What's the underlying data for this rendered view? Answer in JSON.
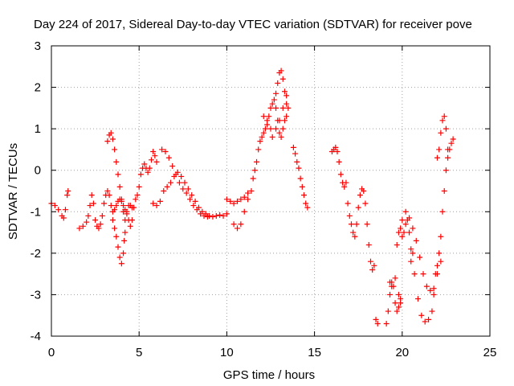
{
  "chart_data": {
    "type": "scatter",
    "title": "Day 224 of 2017, Sidereal Day-to-day VTEC variation (SDTVAR) for receiver pove",
    "xlabel": "GPS time / hours",
    "ylabel": "SDTVAR / TECUs",
    "xlim": [
      0,
      25
    ],
    "ylim": [
      -4,
      3
    ],
    "xticks": [
      0,
      5,
      10,
      15,
      20,
      25
    ],
    "yticks": [
      -4,
      -3,
      -2,
      -1,
      0,
      1,
      2,
      3
    ],
    "grid": true,
    "marker": "+",
    "colors": {
      "series": "#ff0000",
      "axis": "#000000",
      "grid": "#a0a0a0"
    },
    "series": [
      {
        "name": "SDTVAR",
        "points": [
          [
            0.0,
            -0.8
          ],
          [
            0.2,
            -0.85
          ],
          [
            0.4,
            -0.95
          ],
          [
            0.6,
            -1.1
          ],
          [
            0.7,
            -1.15
          ],
          [
            0.8,
            -0.95
          ],
          [
            0.9,
            -0.6
          ],
          [
            0.95,
            -0.5
          ],
          [
            1.6,
            -1.4
          ],
          [
            1.8,
            -1.35
          ],
          [
            2.0,
            -1.25
          ],
          [
            2.1,
            -1.1
          ],
          [
            2.2,
            -0.85
          ],
          [
            2.3,
            -0.6
          ],
          [
            2.4,
            -0.8
          ],
          [
            2.5,
            -1.2
          ],
          [
            2.6,
            -1.35
          ],
          [
            2.7,
            -1.4
          ],
          [
            2.8,
            -1.3
          ],
          [
            2.9,
            -1.1
          ],
          [
            3.0,
            -0.8
          ],
          [
            3.1,
            -0.6
          ],
          [
            3.2,
            -0.5
          ],
          [
            3.3,
            -0.6
          ],
          [
            3.4,
            -0.85
          ],
          [
            3.5,
            -1.0
          ],
          [
            3.6,
            -0.95
          ],
          [
            3.7,
            -0.85
          ],
          [
            3.8,
            -0.75
          ],
          [
            3.9,
            -0.7
          ],
          [
            4.0,
            -0.75
          ],
          [
            4.1,
            -0.85
          ],
          [
            4.2,
            -0.95
          ],
          [
            4.3,
            -1.05
          ],
          [
            4.4,
            -1.2
          ],
          [
            4.5,
            -1.35
          ],
          [
            4.6,
            -1.2
          ],
          [
            4.7,
            -0.9
          ],
          [
            4.8,
            -0.7
          ],
          [
            4.9,
            -0.6
          ],
          [
            5.0,
            -0.4
          ],
          [
            5.1,
            -0.1
          ],
          [
            5.2,
            0.05
          ],
          [
            5.3,
            0.15
          ],
          [
            5.4,
            0.05
          ],
          [
            5.5,
            -0.05
          ],
          [
            5.6,
            0.05
          ],
          [
            5.7,
            0.25
          ],
          [
            5.8,
            0.45
          ],
          [
            5.9,
            0.35
          ],
          [
            6.0,
            0.2
          ],
          [
            3.2,
            0.7
          ],
          [
            3.3,
            0.85
          ],
          [
            3.4,
            0.9
          ],
          [
            3.5,
            0.75
          ],
          [
            3.6,
            0.5
          ],
          [
            3.7,
            0.2
          ],
          [
            3.8,
            -0.1
          ],
          [
            3.9,
            -0.4
          ],
          [
            4.0,
            -0.7
          ],
          [
            4.1,
            -1.0
          ],
          [
            4.2,
            -1.2
          ],
          [
            4.3,
            -1.0
          ],
          [
            4.4,
            -0.85
          ],
          [
            4.5,
            -0.85
          ],
          [
            4.6,
            -0.9
          ],
          [
            3.5,
            -1.2
          ],
          [
            3.6,
            -1.4
          ],
          [
            3.7,
            -1.6
          ],
          [
            3.8,
            -1.85
          ],
          [
            3.9,
            -2.1
          ],
          [
            4.0,
            -2.25
          ],
          [
            4.1,
            -2.0
          ],
          [
            4.15,
            -1.7
          ],
          [
            4.2,
            -1.5
          ],
          [
            5.8,
            -0.8
          ],
          [
            6.0,
            -0.85
          ],
          [
            6.2,
            -0.75
          ],
          [
            6.4,
            -0.5
          ],
          [
            6.6,
            -0.4
          ],
          [
            6.8,
            -0.3
          ],
          [
            7.0,
            -0.15
          ],
          [
            7.2,
            -0.05
          ],
          [
            7.4,
            -0.15
          ],
          [
            7.6,
            -0.3
          ],
          [
            7.8,
            -0.45
          ],
          [
            8.0,
            -0.6
          ],
          [
            8.2,
            -0.75
          ],
          [
            8.4,
            -0.9
          ],
          [
            8.6,
            -1.0
          ],
          [
            8.8,
            -1.05
          ],
          [
            9.0,
            -1.1
          ],
          [
            9.2,
            -1.12
          ],
          [
            9.4,
            -1.1
          ],
          [
            9.6,
            -1.08
          ],
          [
            9.8,
            -1.1
          ],
          [
            10.0,
            -1.05
          ],
          [
            6.3,
            0.5
          ],
          [
            6.5,
            0.45
          ],
          [
            6.7,
            0.3
          ],
          [
            6.9,
            0.1
          ],
          [
            7.1,
            -0.1
          ],
          [
            7.3,
            -0.3
          ],
          [
            7.5,
            -0.45
          ],
          [
            7.7,
            -0.55
          ],
          [
            7.9,
            -0.7
          ],
          [
            8.1,
            -0.85
          ],
          [
            8.3,
            -0.95
          ],
          [
            8.5,
            -1.05
          ],
          [
            8.7,
            -1.1
          ],
          [
            8.9,
            -1.12
          ],
          [
            10.0,
            -0.7
          ],
          [
            10.2,
            -0.75
          ],
          [
            10.4,
            -0.8
          ],
          [
            10.6,
            -0.75
          ],
          [
            10.8,
            -0.7
          ],
          [
            11.0,
            -0.65
          ],
          [
            11.2,
            -0.55
          ],
          [
            10.4,
            -1.3
          ],
          [
            10.6,
            -1.4
          ],
          [
            10.8,
            -1.3
          ],
          [
            11.0,
            -1.0
          ],
          [
            11.2,
            -0.7
          ],
          [
            11.4,
            -0.5
          ],
          [
            11.5,
            -0.2
          ],
          [
            11.6,
            0.0
          ],
          [
            11.7,
            0.2
          ],
          [
            11.8,
            0.5
          ],
          [
            11.9,
            0.7
          ],
          [
            12.0,
            0.8
          ],
          [
            12.1,
            0.9
          ],
          [
            12.2,
            1.0
          ],
          [
            12.3,
            1.1
          ],
          [
            12.4,
            1.3
          ],
          [
            12.5,
            1.5
          ],
          [
            12.6,
            1.6
          ],
          [
            12.7,
            1.7
          ],
          [
            12.8,
            1.85
          ],
          [
            12.9,
            2.1
          ],
          [
            13.0,
            2.35
          ],
          [
            13.1,
            2.4
          ],
          [
            13.2,
            2.2
          ],
          [
            13.3,
            1.9
          ],
          [
            13.4,
            1.6
          ],
          [
            13.5,
            1.5
          ],
          [
            12.1,
            1.3
          ],
          [
            12.3,
            1.2
          ],
          [
            12.5,
            1.0
          ],
          [
            12.6,
            0.8
          ],
          [
            12.8,
            1.0
          ],
          [
            12.9,
            1.2
          ],
          [
            13.0,
            0.9
          ],
          [
            13.1,
            0.8
          ],
          [
            13.2,
            1.0
          ],
          [
            13.3,
            1.2
          ],
          [
            13.4,
            1.3
          ],
          [
            12.8,
            1.5
          ],
          [
            13.0,
            1.2
          ],
          [
            13.2,
            1.5
          ],
          [
            13.4,
            1.8
          ],
          [
            13.8,
            0.55
          ],
          [
            13.9,
            0.4
          ],
          [
            14.0,
            0.2
          ],
          [
            14.1,
            0.05
          ],
          [
            14.2,
            -0.2
          ],
          [
            14.3,
            -0.4
          ],
          [
            14.4,
            -0.6
          ],
          [
            14.5,
            -0.8
          ],
          [
            14.6,
            -0.9
          ],
          [
            16.0,
            0.45
          ],
          [
            16.1,
            0.5
          ],
          [
            16.2,
            0.55
          ],
          [
            16.3,
            0.45
          ],
          [
            16.4,
            0.2
          ],
          [
            16.5,
            -0.1
          ],
          [
            16.6,
            -0.3
          ],
          [
            16.7,
            -0.4
          ],
          [
            16.8,
            -0.3
          ],
          [
            16.9,
            -0.8
          ],
          [
            17.0,
            -1.1
          ],
          [
            17.1,
            -1.3
          ],
          [
            17.2,
            -1.5
          ],
          [
            17.3,
            -1.6
          ],
          [
            17.4,
            -1.3
          ],
          [
            17.5,
            -0.9
          ],
          [
            17.6,
            -0.6
          ],
          [
            17.7,
            -0.45
          ],
          [
            17.8,
            -0.5
          ],
          [
            17.9,
            -0.8
          ],
          [
            18.0,
            -1.3
          ],
          [
            18.1,
            -1.8
          ],
          [
            18.2,
            -2.2
          ],
          [
            18.3,
            -2.4
          ],
          [
            18.4,
            -2.3
          ],
          [
            18.5,
            -3.6
          ],
          [
            18.6,
            -3.7
          ],
          [
            19.1,
            -3.7
          ],
          [
            19.2,
            -3.4
          ],
          [
            19.3,
            -3.0
          ],
          [
            19.4,
            -2.7
          ],
          [
            19.5,
            -2.8
          ],
          [
            19.6,
            -3.2
          ],
          [
            19.7,
            -3.4
          ],
          [
            19.8,
            -3.3
          ],
          [
            19.9,
            -3.1
          ],
          [
            19.3,
            -2.7
          ],
          [
            19.4,
            -2.8
          ],
          [
            19.6,
            -2.6
          ],
          [
            19.8,
            -3.0
          ],
          [
            19.9,
            -3.2
          ],
          [
            19.7,
            -1.8
          ],
          [
            19.8,
            -1.5
          ],
          [
            19.9,
            -1.4
          ],
          [
            20.0,
            -1.6
          ],
          [
            20.1,
            -1.5
          ],
          [
            20.2,
            -1.3
          ],
          [
            20.3,
            -1.2
          ],
          [
            20.4,
            -1.5
          ],
          [
            20.5,
            -1.9
          ],
          [
            20.6,
            -2.0
          ],
          [
            20.0,
            -1.2
          ],
          [
            20.2,
            -1.0
          ],
          [
            20.4,
            -1.15
          ],
          [
            20.6,
            -1.4
          ],
          [
            20.8,
            -1.7
          ],
          [
            21.0,
            -2.1
          ],
          [
            21.2,
            -2.5
          ],
          [
            21.4,
            -2.8
          ],
          [
            21.6,
            -2.9
          ],
          [
            21.8,
            -2.85
          ],
          [
            22.0,
            -2.5
          ],
          [
            22.2,
            -2.2
          ],
          [
            20.5,
            -2.2
          ],
          [
            20.7,
            -2.5
          ],
          [
            20.9,
            -3.1
          ],
          [
            21.1,
            -3.5
          ],
          [
            21.3,
            -3.65
          ],
          [
            21.5,
            -3.6
          ],
          [
            21.7,
            -3.4
          ],
          [
            21.8,
            -3.0
          ],
          [
            21.9,
            -2.5
          ],
          [
            22.0,
            -2.3
          ],
          [
            22.1,
            -2.0
          ],
          [
            22.2,
            -1.6
          ],
          [
            22.3,
            -1.0
          ],
          [
            22.4,
            -0.5
          ],
          [
            22.5,
            0.0
          ],
          [
            22.6,
            0.3
          ],
          [
            22.7,
            0.5
          ],
          [
            22.8,
            0.65
          ],
          [
            22.9,
            0.75
          ],
          [
            22.0,
            0.3
          ],
          [
            22.1,
            0.5
          ],
          [
            22.2,
            0.9
          ],
          [
            22.3,
            1.2
          ],
          [
            22.4,
            1.3
          ],
          [
            22.5,
            1.0
          ],
          [
            22.6,
            0.5
          ]
        ]
      }
    ]
  }
}
